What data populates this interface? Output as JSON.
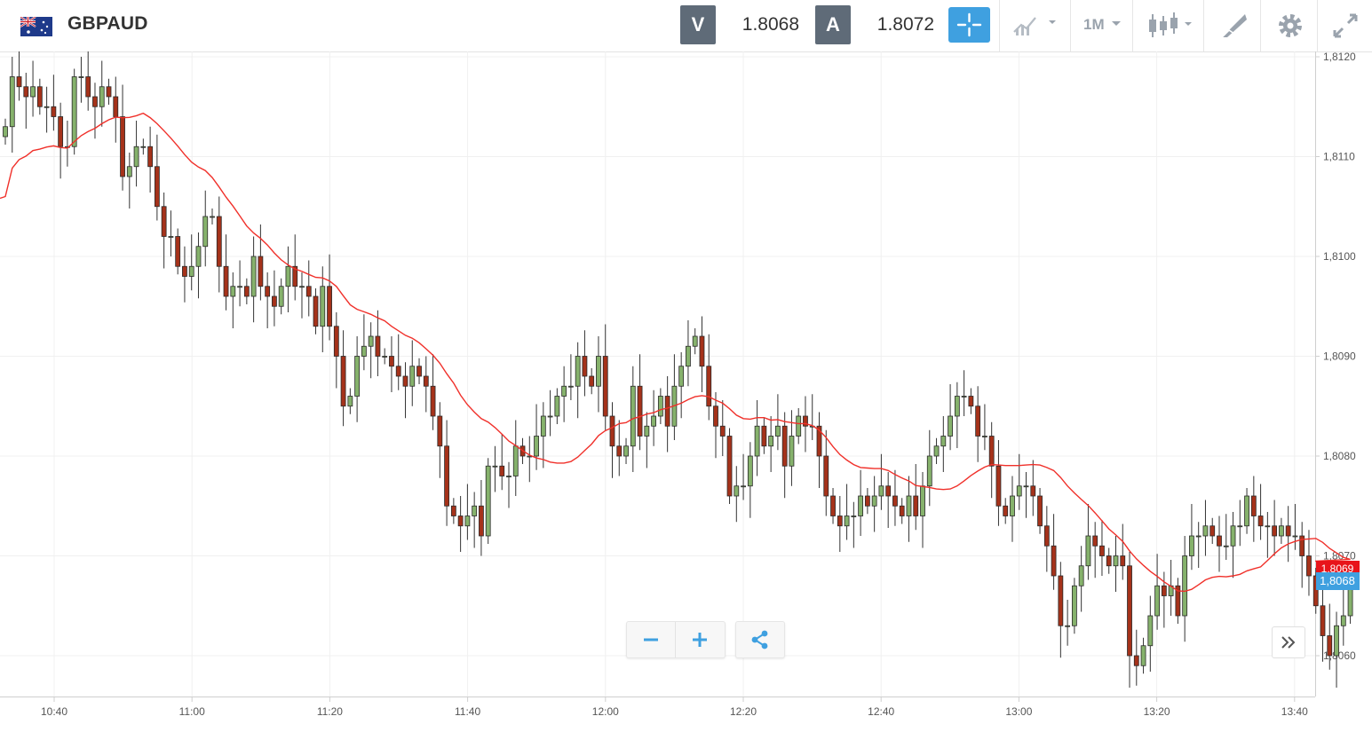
{
  "header": {
    "symbol": "GBPAUD",
    "sell_label": "V",
    "sell_price": "1.8068",
    "buy_label": "A",
    "buy_price": "1.8072",
    "timeframe": "1M"
  },
  "icons": {
    "flag": "gb-au-flag-icon",
    "crosshair": "crosshair-icon",
    "indicators": "indicators-icon",
    "timeframe": "timeframe-dropdown",
    "chart_type": "candlestick-icon",
    "drawing": "drawing-tools-icon",
    "settings": "gear-icon",
    "fullscreen": "fullscreen-icon",
    "zoom_out": "minus-icon",
    "zoom_in": "plus-icon",
    "share": "share-icon",
    "scroll": "double-chevron-right-icon"
  },
  "colors": {
    "accent": "#3fa0e0",
    "bullish": "#86b26c",
    "bearish": "#a5321a",
    "moving_average": "#f0302a",
    "last_price_tag": "#3fa0e0",
    "ma_price_tag": "#e8141a"
  },
  "chart_data": {
    "type": "candlestick",
    "title": "GBPAUD",
    "interval": "1M",
    "y_axis": {
      "ticks": [
        "1,8060",
        "1,8070",
        "1,8080",
        "1,8090",
        "1,8100",
        "1,8110",
        "1,8120"
      ],
      "range": [
        1.8056,
        1.8121
      ]
    },
    "x_axis": {
      "ticks": [
        "10:40",
        "11:00",
        "11:20",
        "11:40",
        "12:00",
        "12:20",
        "12:40",
        "13:00",
        "13:20",
        "13:40"
      ]
    },
    "last_price_label": "1,8068",
    "ma_price_label": "1,8069",
    "close": [
      1.8113,
      1.8118,
      1.8117,
      1.8116,
      1.8117,
      1.8115,
      1.8115,
      1.8114,
      1.8111,
      1.8111,
      1.8118,
      1.8118,
      1.8116,
      1.8115,
      1.8117,
      1.8116,
      1.8114,
      1.8108,
      1.8109,
      1.8111,
      1.8111,
      1.8109,
      1.8105,
      1.8102,
      1.8102,
      1.8099,
      1.8098,
      1.8099,
      1.8101,
      1.8104,
      1.8104,
      1.8099,
      1.8096,
      1.8097,
      1.8097,
      1.8096,
      1.81,
      1.8097,
      1.8096,
      1.8095,
      1.8097,
      1.8099,
      1.8097,
      1.8097,
      1.8096,
      1.8093,
      1.8097,
      1.8093,
      1.809,
      1.8085,
      1.8086,
      1.809,
      1.8091,
      1.8092,
      1.809,
      1.809,
      1.8089,
      1.8088,
      1.8087,
      1.8089,
      1.8088,
      1.8087,
      1.8084,
      1.8081,
      1.8075,
      1.8074,
      1.8073,
      1.8074,
      1.8075,
      1.8072,
      1.8079,
      1.8079,
      1.8078,
      1.8078,
      1.8081,
      1.808,
      1.808,
      1.8082,
      1.8084,
      1.8084,
      1.8086,
      1.8087,
      1.8087,
      1.809,
      1.8088,
      1.8087,
      1.809,
      1.8084,
      1.8081,
      1.808,
      1.8081,
      1.8087,
      1.8082,
      1.8083,
      1.8084,
      1.8086,
      1.8083,
      1.8087,
      1.8089,
      1.8091,
      1.8092,
      1.8089,
      1.8085,
      1.8083,
      1.8082,
      1.8076,
      1.8077,
      1.8077,
      1.808,
      1.8083,
      1.8081,
      1.8082,
      1.8083,
      1.8079,
      1.8082,
      1.8084,
      1.8083,
      1.8083,
      1.808,
      1.8076,
      1.8074,
      1.8073,
      1.8074,
      1.8074,
      1.8076,
      1.8075,
      1.8076,
      1.8077,
      1.8076,
      1.8075,
      1.8074,
      1.8076,
      1.8074,
      1.8077,
      1.808,
      1.8081,
      1.8082,
      1.8084,
      1.8086,
      1.8086,
      1.8085,
      1.8082,
      1.8082,
      1.8079,
      1.8075,
      1.8074,
      1.8076,
      1.8077,
      1.8077,
      1.8076,
      1.8073,
      1.8071,
      1.8068,
      1.8063,
      1.8063,
      1.8067,
      1.8069,
      1.8072,
      1.8071,
      1.807,
      1.8069,
      1.807,
      1.8069,
      1.806,
      1.8059,
      1.8061,
      1.8064,
      1.8067,
      1.8066,
      1.8067,
      1.8064,
      1.807,
      1.8072,
      1.8072,
      1.8073,
      1.8072,
      1.8071,
      1.8071,
      1.8073,
      1.8073,
      1.8076,
      1.8074,
      1.8073,
      1.8073,
      1.8072,
      1.8073,
      1.8072,
      1.8072,
      1.807,
      1.8068,
      1.8065,
      1.8062,
      1.806,
      1.8063,
      1.8064,
      1.8068
    ]
  }
}
